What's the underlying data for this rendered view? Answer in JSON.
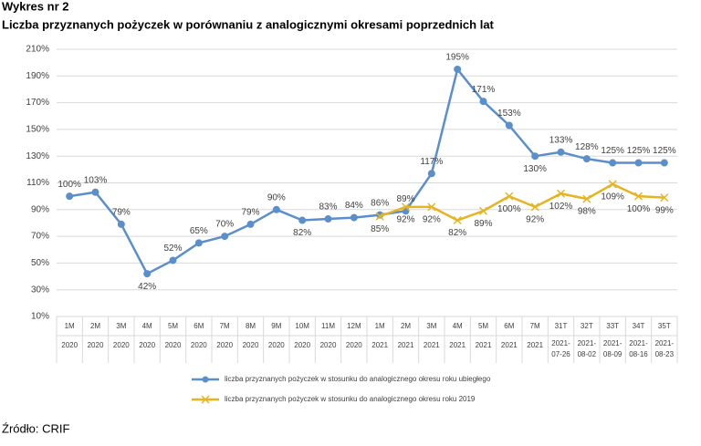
{
  "chart_data": {
    "type": "line",
    "supertitle": "Wykres nr 2",
    "title": "Liczba przyznanych pożyczek w porównaniu z analogicznymi okresami poprzednich lat",
    "source": "Źródło: CRIF",
    "categories": [
      "1M",
      "2M",
      "3M",
      "4M",
      "5M",
      "6M",
      "7M",
      "8M",
      "9M",
      "10M",
      "11M",
      "12M",
      "1M",
      "2M",
      "3M",
      "4M",
      "5M",
      "6M",
      "7M",
      "31T",
      "32T",
      "33T",
      "34T",
      "35T"
    ],
    "subcategories": [
      "2020",
      "2020",
      "2020",
      "2020",
      "2020",
      "2020",
      "2020",
      "2020",
      "2020",
      "2020",
      "2020",
      "2020",
      "2021",
      "2021",
      "2021",
      "2021",
      "2021",
      "2021",
      "2021",
      [
        "2021-",
        "07-26"
      ],
      [
        "2021-",
        "08-02"
      ],
      [
        "2021-",
        "08-09"
      ],
      [
        "2021-",
        "08-16"
      ],
      [
        "2021-",
        "08-23"
      ]
    ],
    "series": [
      {
        "name": "liczba przyznanych pożyczek w stosunku do analogicznego okresu roku ubiegłego",
        "color": "#5b8fcc",
        "marker": "circle",
        "values": [
          100,
          103,
          79,
          42,
          52,
          65,
          70,
          79,
          90,
          82,
          83,
          84,
          86,
          89,
          117,
          195,
          171,
          153,
          130,
          133,
          128,
          125,
          125,
          125
        ],
        "value_labels": [
          "100%",
          "103%",
          "79%",
          "42%",
          "52%",
          "65%",
          "70%",
          "79%",
          "90%",
          "82%",
          "83%",
          "84%",
          "86%",
          "89%",
          "117%",
          "195%",
          "171%",
          "153%",
          "130%",
          "133%",
          "128%",
          "125%",
          "125%",
          "125%"
        ]
      },
      {
        "name": "liczba przyznanych pożyczek w stosunku do analogicznego okresu roku 2019",
        "color": "#e6b422",
        "marker": "x",
        "values": [
          null,
          null,
          null,
          null,
          null,
          null,
          null,
          null,
          null,
          null,
          null,
          null,
          85,
          92,
          92,
          82,
          89,
          100,
          92,
          102,
          98,
          109,
          100,
          99
        ],
        "value_labels": [
          null,
          null,
          null,
          null,
          null,
          null,
          null,
          null,
          null,
          null,
          null,
          null,
          "85%",
          "92%",
          "92%",
          "82%",
          "89%",
          "100%",
          "92%",
          "102%",
          "98%",
          "109%",
          "100%",
          "99%"
        ]
      }
    ],
    "ylim": [
      10,
      210
    ],
    "yticks": [
      {
        "value": 10,
        "label": "10%"
      },
      {
        "value": 30,
        "label": "30%"
      },
      {
        "value": 50,
        "label": "50%"
      },
      {
        "value": 70,
        "label": "70%"
      },
      {
        "value": 90,
        "label": "90%"
      },
      {
        "value": 110,
        "label": "110%"
      },
      {
        "value": 130,
        "label": "130%"
      },
      {
        "value": 150,
        "label": "150%"
      },
      {
        "value": 170,
        "label": "170%"
      },
      {
        "value": 190,
        "label": "190%"
      },
      {
        "value": 210,
        "label": "210%"
      }
    ],
    "grid": true
  }
}
